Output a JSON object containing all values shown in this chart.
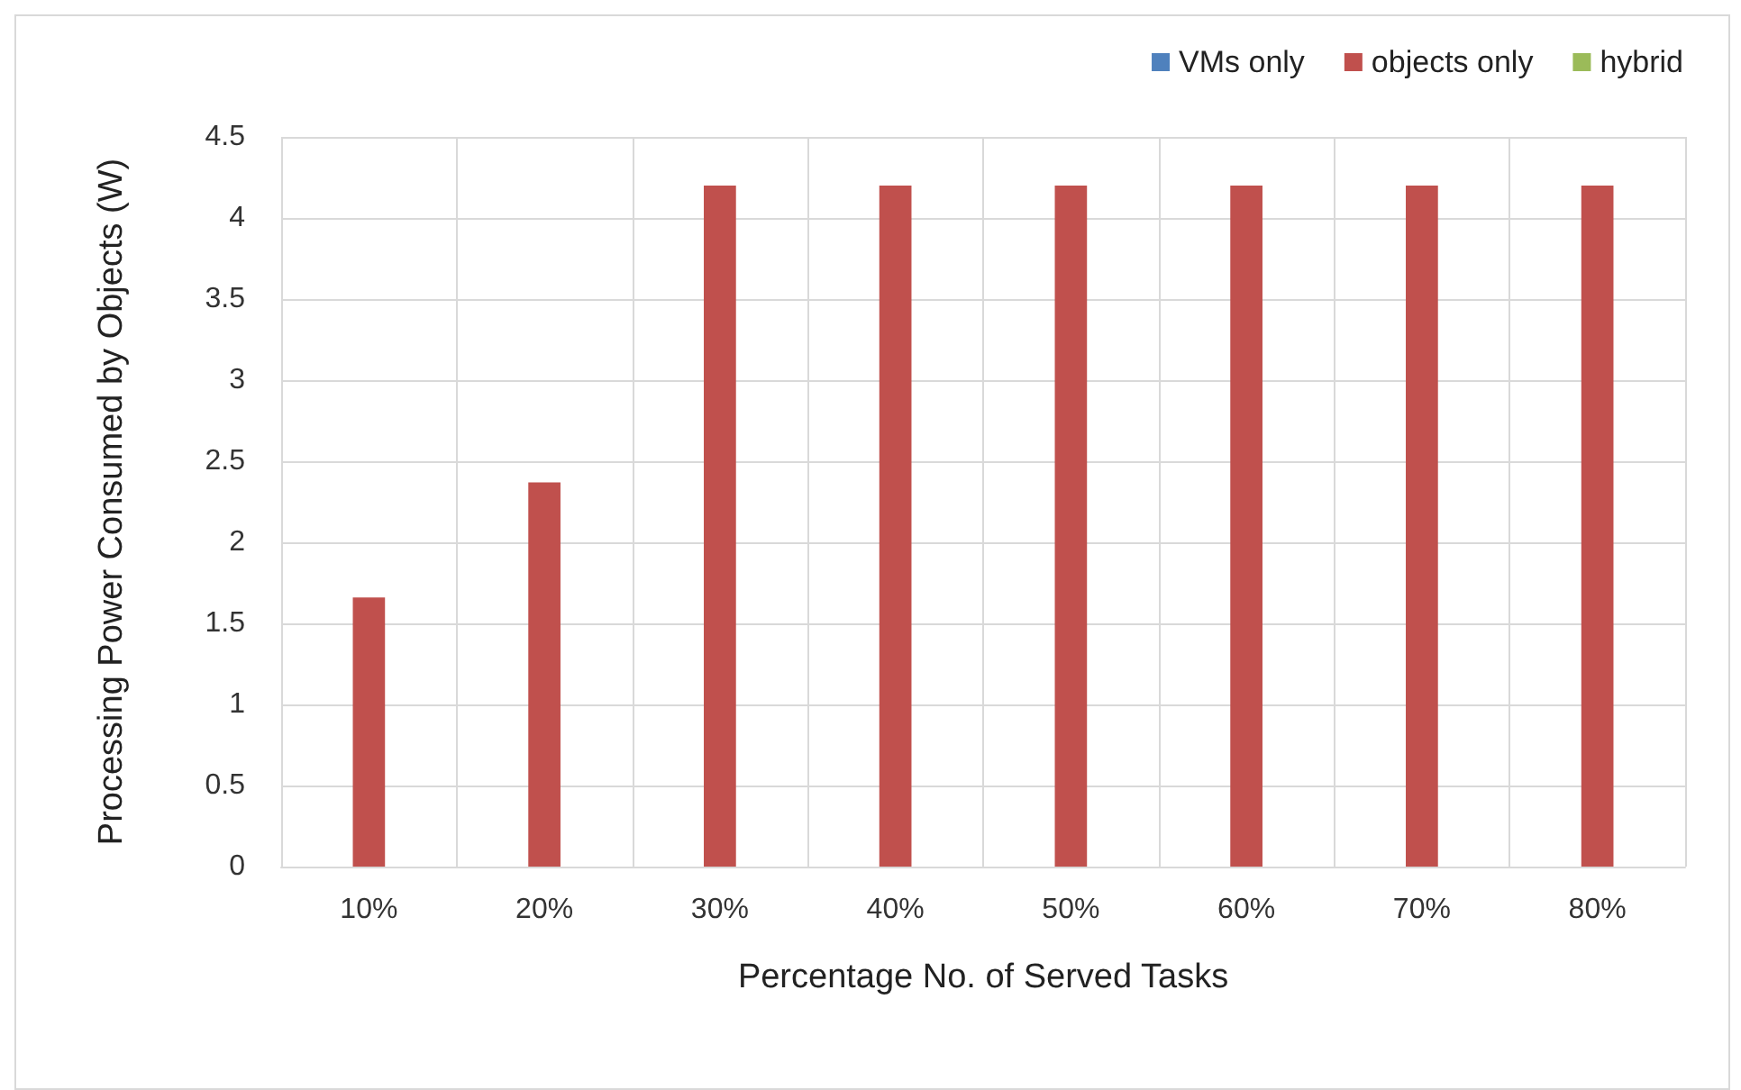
{
  "chart_data": {
    "type": "bar",
    "xlabel": "Percentage No. of Served Tasks",
    "ylabel": "Processing Power Consumed by Objects (W)",
    "categories": [
      "10%",
      "20%",
      "30%",
      "40%",
      "50%",
      "60%",
      "70%",
      "80%"
    ],
    "series": [
      {
        "name": "VMs only",
        "color": "#4f81bd",
        "values": [
          0,
          0,
          0,
          0,
          0,
          0,
          0,
          0
        ]
      },
      {
        "name": "objects only",
        "color": "#c0504d",
        "values": [
          1.66,
          2.37,
          4.2,
          4.2,
          4.2,
          4.2,
          4.2,
          4.2
        ]
      },
      {
        "name": "hybrid",
        "color": "#9bbb59",
        "values": [
          0,
          0,
          0,
          0,
          0,
          0,
          0,
          0
        ]
      }
    ],
    "ylim": [
      0,
      4.5
    ],
    "yticks": [
      0,
      0.5,
      1,
      1.5,
      2,
      2.5,
      3,
      3.5,
      4,
      4.5
    ],
    "grid": true,
    "legend": "top right"
  }
}
